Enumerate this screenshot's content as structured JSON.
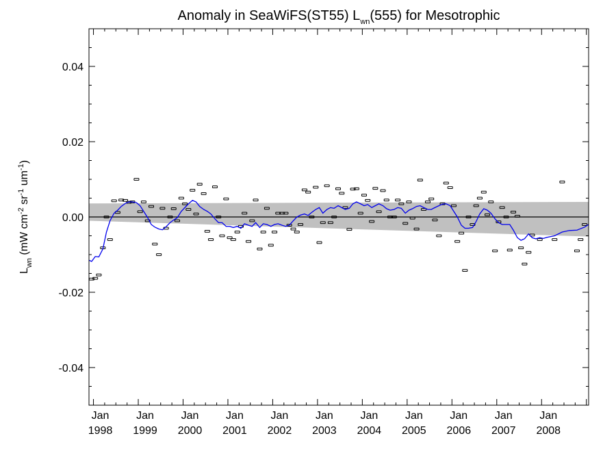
{
  "chart_data": {
    "type": "scatter",
    "title": {
      "prefix": "Anomaly in SeaWiFS(ST55) L",
      "sub": "wn",
      "suffix": "(555) for Mesotrophic"
    },
    "ylabel": {
      "parts": [
        {
          "t": "L",
          "s": ""
        },
        {
          "t": "wn",
          "s": "sub"
        },
        {
          "t": " (mW cm",
          "s": ""
        },
        {
          "t": "-2",
          "s": "sup"
        },
        {
          "t": " sr",
          "s": ""
        },
        {
          "t": "-1",
          "s": "sup"
        },
        {
          "t": " um",
          "s": ""
        },
        {
          "t": "-1",
          "s": "sup"
        },
        {
          "t": ")",
          "s": ""
        }
      ]
    },
    "xlim": [
      1997.9,
      2009.05
    ],
    "ylim": [
      -0.05,
      0.05
    ],
    "yticks": [
      {
        "v": -0.04,
        "label": "-0.04"
      },
      {
        "v": -0.02,
        "label": "-0.02"
      },
      {
        "v": 0.0,
        "label": "0.00"
      },
      {
        "v": 0.02,
        "label": "0.02"
      },
      {
        "v": 0.04,
        "label": "0.04"
      }
    ],
    "xticks": [
      {
        "v": 1998,
        "month": "Jan",
        "year": "1998"
      },
      {
        "v": 1999,
        "month": "Jan",
        "year": "1999"
      },
      {
        "v": 2000,
        "month": "Jan",
        "year": "2000"
      },
      {
        "v": 2001,
        "month": "Jan",
        "year": "2001"
      },
      {
        "v": 2002,
        "month": "Jan",
        "year": "2002"
      },
      {
        "v": 2003,
        "month": "Jan",
        "year": "2003"
      },
      {
        "v": 2004,
        "month": "Jan",
        "year": "2004"
      },
      {
        "v": 2005,
        "month": "Jan",
        "year": "2005"
      },
      {
        "v": 2006,
        "month": "Jan",
        "year": "2006"
      },
      {
        "v": 2007,
        "month": "Jan",
        "year": "2007"
      },
      {
        "v": 2008,
        "month": "Jan",
        "year": "2008"
      }
    ],
    "zero_line": 0.0,
    "band": {
      "color": "#c0c0c0",
      "x": [
        1997.9,
        2009.05
      ],
      "upper": [
        0.0036,
        0.004
      ],
      "lower": [
        -0.001,
        -0.0052
      ]
    },
    "points_color": "#000000",
    "points": [
      [
        1997.96,
        -0.0165
      ],
      [
        1998.04,
        -0.0163
      ],
      [
        1998.12,
        -0.0154
      ],
      [
        1998.21,
        -0.0082
      ],
      [
        1998.29,
        0.0
      ],
      [
        1998.37,
        -0.006
      ],
      [
        1998.46,
        0.0043
      ],
      [
        1998.54,
        0.0012
      ],
      [
        1998.62,
        0.0045
      ],
      [
        1998.71,
        0.0044
      ],
      [
        1998.79,
        0.0039
      ],
      [
        1998.87,
        0.004
      ],
      [
        1998.96,
        0.01
      ],
      [
        1999.04,
        0.0014
      ],
      [
        1999.12,
        0.004
      ],
      [
        1999.21,
        -0.001
      ],
      [
        1999.29,
        0.0028
      ],
      [
        1999.37,
        -0.0072
      ],
      [
        1999.46,
        -0.01
      ],
      [
        1999.54,
        0.0023
      ],
      [
        1999.62,
        -0.003
      ],
      [
        1999.71,
        0.0
      ],
      [
        1999.79,
        0.0022
      ],
      [
        1999.87,
        -0.001
      ],
      [
        1999.96,
        0.005
      ],
      [
        2000.04,
        0.0035
      ],
      [
        2000.12,
        0.002
      ],
      [
        2000.21,
        0.0071
      ],
      [
        2000.29,
        0.0008
      ],
      [
        2000.37,
        0.0087
      ],
      [
        2000.46,
        0.0062
      ],
      [
        2000.54,
        -0.0038
      ],
      [
        2000.62,
        -0.006
      ],
      [
        2000.71,
        0.008
      ],
      [
        2000.79,
        0.0
      ],
      [
        2000.87,
        -0.005
      ],
      [
        2000.96,
        0.0048
      ],
      [
        2001.04,
        -0.0055
      ],
      [
        2001.12,
        -0.006
      ],
      [
        2001.21,
        -0.004
      ],
      [
        2001.29,
        -0.0025
      ],
      [
        2001.37,
        0.001
      ],
      [
        2001.46,
        -0.0065
      ],
      [
        2001.54,
        -0.001
      ],
      [
        2001.62,
        0.0045
      ],
      [
        2001.71,
        -0.0085
      ],
      [
        2001.79,
        -0.004
      ],
      [
        2001.87,
        0.0023
      ],
      [
        2001.96,
        -0.0075
      ],
      [
        2002.04,
        -0.004
      ],
      [
        2002.12,
        0.001
      ],
      [
        2002.21,
        0.001
      ],
      [
        2002.29,
        0.001
      ],
      [
        2002.37,
        -0.0022
      ],
      [
        2002.46,
        -0.0032
      ],
      [
        2002.54,
        -0.004
      ],
      [
        2002.62,
        -0.002
      ],
      [
        2002.71,
        0.0072
      ],
      [
        2002.79,
        0.0066
      ],
      [
        2002.87,
        0.0
      ],
      [
        2002.96,
        0.0079
      ],
      [
        2003.04,
        -0.0068
      ],
      [
        2003.12,
        -0.0015
      ],
      [
        2003.21,
        0.0083
      ],
      [
        2003.29,
        -0.0015
      ],
      [
        2003.37,
        0.0
      ],
      [
        2003.46,
        0.0075
      ],
      [
        2003.54,
        0.0063
      ],
      [
        2003.62,
        0.0025
      ],
      [
        2003.71,
        -0.0033
      ],
      [
        2003.79,
        0.0074
      ],
      [
        2003.87,
        0.0075
      ],
      [
        2003.96,
        0.001
      ],
      [
        2004.04,
        0.0058
      ],
      [
        2004.12,
        0.0044
      ],
      [
        2004.21,
        -0.0012
      ],
      [
        2004.29,
        0.0076
      ],
      [
        2004.37,
        0.0014
      ],
      [
        2004.46,
        0.007
      ],
      [
        2004.54,
        0.0045
      ],
      [
        2004.62,
        0.0
      ],
      [
        2004.71,
        0.0
      ],
      [
        2004.79,
        0.0045
      ],
      [
        2004.87,
        0.0035
      ],
      [
        2004.96,
        -0.0017
      ],
      [
        2005.04,
        0.004
      ],
      [
        2005.12,
        -0.0003
      ],
      [
        2005.21,
        -0.0032
      ],
      [
        2005.29,
        0.0098
      ],
      [
        2005.37,
        0.002
      ],
      [
        2005.46,
        0.004
      ],
      [
        2005.54,
        0.0048
      ],
      [
        2005.62,
        -0.0008
      ],
      [
        2005.71,
        -0.005
      ],
      [
        2005.79,
        0.0035
      ],
      [
        2005.87,
        0.009
      ],
      [
        2005.96,
        0.0078
      ],
      [
        2006.04,
        0.003
      ],
      [
        2006.12,
        -0.0065
      ],
      [
        2006.21,
        -0.0043
      ],
      [
        2006.29,
        -0.0142
      ],
      [
        2006.37,
        0.0
      ],
      [
        2006.46,
        -0.002
      ],
      [
        2006.54,
        0.003
      ],
      [
        2006.62,
        0.005
      ],
      [
        2006.71,
        0.0066
      ],
      [
        2006.79,
        0.0006
      ],
      [
        2006.87,
        0.004
      ],
      [
        2006.96,
        -0.009
      ],
      [
        2007.04,
        -0.0013
      ],
      [
        2007.12,
        0.0025
      ],
      [
        2007.21,
        0.0
      ],
      [
        2007.29,
        -0.0088
      ],
      [
        2007.37,
        0.0013
      ],
      [
        2007.46,
        0.0002
      ],
      [
        2007.54,
        -0.0082
      ],
      [
        2007.62,
        -0.0125
      ],
      [
        2007.71,
        -0.0094
      ],
      [
        2007.79,
        -0.0048
      ],
      [
        2007.96,
        -0.006
      ],
      [
        2008.29,
        -0.006
      ],
      [
        2008.46,
        0.0093
      ],
      [
        2008.79,
        -0.009
      ],
      [
        2008.87,
        -0.006
      ],
      [
        2008.96,
        -0.002
      ]
    ],
    "line_color": "#0000ee",
    "line": [
      [
        1997.9,
        -0.0115
      ],
      [
        1997.96,
        -0.0118
      ],
      [
        1998.04,
        -0.0105
      ],
      [
        1998.12,
        -0.0106
      ],
      [
        1998.21,
        -0.0085
      ],
      [
        1998.29,
        -0.004
      ],
      [
        1998.37,
        -0.001
      ],
      [
        1998.46,
        0.001
      ],
      [
        1998.54,
        0.0018
      ],
      [
        1998.62,
        0.0028
      ],
      [
        1998.71,
        0.0036
      ],
      [
        1998.79,
        0.004
      ],
      [
        1998.87,
        0.004
      ],
      [
        1998.96,
        0.0038
      ],
      [
        1999.04,
        0.003
      ],
      [
        1999.12,
        0.0015
      ],
      [
        1999.21,
        -0.0002
      ],
      [
        1999.29,
        -0.002
      ],
      [
        1999.37,
        -0.0027
      ],
      [
        1999.46,
        -0.0032
      ],
      [
        1999.54,
        -0.0034
      ],
      [
        1999.62,
        -0.0026
      ],
      [
        1999.71,
        -0.0015
      ],
      [
        1999.79,
        -0.0008
      ],
      [
        1999.87,
        -0.0002
      ],
      [
        1999.96,
        0.0015
      ],
      [
        2000.04,
        0.0025
      ],
      [
        2000.12,
        0.0035
      ],
      [
        2000.21,
        0.0044
      ],
      [
        2000.29,
        0.004
      ],
      [
        2000.37,
        0.0028
      ],
      [
        2000.46,
        0.002
      ],
      [
        2000.54,
        0.0015
      ],
      [
        2000.62,
        0.0008
      ],
      [
        2000.71,
        -0.0005
      ],
      [
        2000.79,
        -0.0015
      ],
      [
        2000.87,
        -0.0015
      ],
      [
        2000.96,
        -0.0025
      ],
      [
        2001.04,
        -0.0025
      ],
      [
        2001.12,
        -0.0028
      ],
      [
        2001.21,
        -0.0025
      ],
      [
        2001.29,
        -0.003
      ],
      [
        2001.37,
        -0.0018
      ],
      [
        2001.46,
        -0.0022
      ],
      [
        2001.54,
        -0.0025
      ],
      [
        2001.62,
        -0.0015
      ],
      [
        2001.71,
        -0.0028
      ],
      [
        2001.79,
        -0.0018
      ],
      [
        2001.87,
        -0.002
      ],
      [
        2001.96,
        -0.0025
      ],
      [
        2002.04,
        -0.002
      ],
      [
        2002.12,
        -0.0018
      ],
      [
        2002.21,
        -0.0022
      ],
      [
        2002.29,
        -0.0025
      ],
      [
        2002.37,
        -0.0022
      ],
      [
        2002.46,
        -0.001
      ],
      [
        2002.54,
        0.0
      ],
      [
        2002.62,
        0.0005
      ],
      [
        2002.71,
        0.0008
      ],
      [
        2002.79,
        0.0004
      ],
      [
        2002.87,
        0.0012
      ],
      [
        2002.96,
        0.002
      ],
      [
        2003.04,
        0.0025
      ],
      [
        2003.12,
        0.001
      ],
      [
        2003.21,
        0.002
      ],
      [
        2003.29,
        0.0025
      ],
      [
        2003.37,
        0.0023
      ],
      [
        2003.46,
        0.003
      ],
      [
        2003.54,
        0.0025
      ],
      [
        2003.62,
        0.002
      ],
      [
        2003.71,
        0.0023
      ],
      [
        2003.79,
        0.0035
      ],
      [
        2003.87,
        0.004
      ],
      [
        2003.96,
        0.0035
      ],
      [
        2004.04,
        0.003
      ],
      [
        2004.12,
        0.0033
      ],
      [
        2004.21,
        0.0025
      ],
      [
        2004.29,
        0.003
      ],
      [
        2004.37,
        0.0035
      ],
      [
        2004.46,
        0.003
      ],
      [
        2004.54,
        0.0022
      ],
      [
        2004.62,
        0.0018
      ],
      [
        2004.71,
        0.002
      ],
      [
        2004.79,
        0.0025
      ],
      [
        2004.87,
        0.0023
      ],
      [
        2004.96,
        0.001
      ],
      [
        2005.04,
        0.0018
      ],
      [
        2005.12,
        0.0022
      ],
      [
        2005.21,
        0.0028
      ],
      [
        2005.29,
        0.003
      ],
      [
        2005.37,
        0.0025
      ],
      [
        2005.46,
        0.002
      ],
      [
        2005.54,
        0.002
      ],
      [
        2005.62,
        0.0025
      ],
      [
        2005.71,
        0.003
      ],
      [
        2005.79,
        0.0034
      ],
      [
        2005.87,
        0.0035
      ],
      [
        2005.96,
        0.003
      ],
      [
        2006.04,
        0.0015
      ],
      [
        2006.12,
        0.0
      ],
      [
        2006.21,
        -0.0022
      ],
      [
        2006.29,
        -0.003
      ],
      [
        2006.37,
        -0.003
      ],
      [
        2006.46,
        -0.0028
      ],
      [
        2006.54,
        -0.0012
      ],
      [
        2006.62,
        0.0008
      ],
      [
        2006.71,
        0.0022
      ],
      [
        2006.79,
        0.0018
      ],
      [
        2006.87,
        0.001
      ],
      [
        2006.96,
        -0.0005
      ],
      [
        2007.04,
        -0.0015
      ],
      [
        2007.12,
        -0.002
      ],
      [
        2007.21,
        -0.002
      ],
      [
        2007.29,
        -0.002
      ],
      [
        2007.37,
        -0.0035
      ],
      [
        2007.46,
        -0.0055
      ],
      [
        2007.54,
        -0.0062
      ],
      [
        2007.62,
        -0.0058
      ],
      [
        2007.71,
        -0.0045
      ],
      [
        2007.79,
        -0.0055
      ],
      [
        2007.87,
        -0.0058
      ],
      [
        2007.96,
        -0.0055
      ],
      [
        2008.04,
        -0.0057
      ],
      [
        2008.12,
        -0.0054
      ],
      [
        2008.29,
        -0.005
      ],
      [
        2008.46,
        -0.004
      ],
      [
        2008.62,
        -0.0036
      ],
      [
        2008.79,
        -0.0035
      ],
      [
        2008.96,
        -0.0027
      ],
      [
        2009.05,
        -0.002
      ]
    ]
  }
}
